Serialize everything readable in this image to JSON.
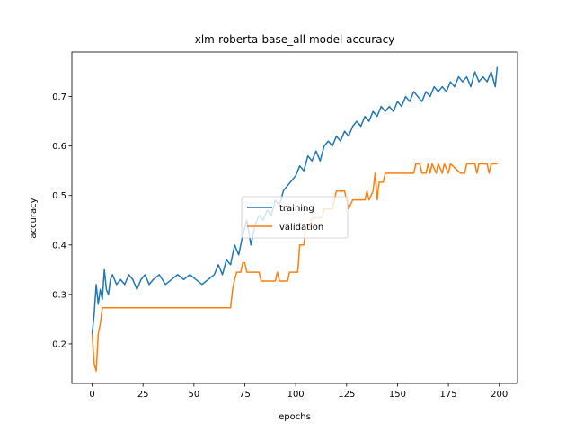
{
  "chart_data": {
    "type": "line",
    "title": "xlm-roberta-base_all model accuracy",
    "xlabel": "epochs",
    "ylabel": "accuracy",
    "xlim": [
      -9.95,
      208.95
    ],
    "ylim": [
      0.12,
      0.79
    ],
    "xticks": [
      0,
      25,
      50,
      75,
      100,
      125,
      150,
      175,
      200
    ],
    "yticks": [
      0.2,
      0.3,
      0.4,
      0.5,
      0.6,
      0.7
    ],
    "grid": false,
    "legend_position": "center",
    "series": [
      {
        "name": "training",
        "color": "#1f77b4",
        "keypoints": [
          [
            0,
            0.22
          ],
          [
            1,
            0.26
          ],
          [
            2,
            0.32
          ],
          [
            3,
            0.28
          ],
          [
            4,
            0.31
          ],
          [
            5,
            0.29
          ],
          [
            6,
            0.35
          ],
          [
            7,
            0.31
          ],
          [
            8,
            0.3
          ],
          [
            9,
            0.33
          ],
          [
            10,
            0.34
          ],
          [
            12,
            0.32
          ],
          [
            14,
            0.33
          ],
          [
            16,
            0.32
          ],
          [
            18,
            0.34
          ],
          [
            20,
            0.33
          ],
          [
            22,
            0.31
          ],
          [
            24,
            0.33
          ],
          [
            26,
            0.34
          ],
          [
            28,
            0.32
          ],
          [
            30,
            0.33
          ],
          [
            33,
            0.34
          ],
          [
            36,
            0.32
          ],
          [
            39,
            0.33
          ],
          [
            42,
            0.34
          ],
          [
            45,
            0.33
          ],
          [
            48,
            0.34
          ],
          [
            51,
            0.33
          ],
          [
            54,
            0.32
          ],
          [
            57,
            0.33
          ],
          [
            60,
            0.34
          ],
          [
            62,
            0.36
          ],
          [
            64,
            0.34
          ],
          [
            66,
            0.37
          ],
          [
            68,
            0.36
          ],
          [
            70,
            0.4
          ],
          [
            72,
            0.38
          ],
          [
            74,
            0.42
          ],
          [
            76,
            0.45
          ],
          [
            78,
            0.4
          ],
          [
            80,
            0.44
          ],
          [
            82,
            0.46
          ],
          [
            84,
            0.45
          ],
          [
            86,
            0.47
          ],
          [
            88,
            0.46
          ],
          [
            90,
            0.49
          ],
          [
            92,
            0.48
          ],
          [
            94,
            0.51
          ],
          [
            96,
            0.52
          ],
          [
            98,
            0.53
          ],
          [
            100,
            0.54
          ],
          [
            102,
            0.56
          ],
          [
            104,
            0.55
          ],
          [
            106,
            0.58
          ],
          [
            108,
            0.57
          ],
          [
            110,
            0.59
          ],
          [
            112,
            0.57
          ],
          [
            114,
            0.6
          ],
          [
            116,
            0.61
          ],
          [
            118,
            0.6
          ],
          [
            120,
            0.62
          ],
          [
            122,
            0.61
          ],
          [
            124,
            0.63
          ],
          [
            126,
            0.62
          ],
          [
            128,
            0.64
          ],
          [
            130,
            0.65
          ],
          [
            132,
            0.64
          ],
          [
            134,
            0.66
          ],
          [
            136,
            0.65
          ],
          [
            138,
            0.67
          ],
          [
            140,
            0.66
          ],
          [
            142,
            0.68
          ],
          [
            144,
            0.67
          ],
          [
            146,
            0.68
          ],
          [
            148,
            0.67
          ],
          [
            150,
            0.69
          ],
          [
            152,
            0.68
          ],
          [
            154,
            0.7
          ],
          [
            156,
            0.69
          ],
          [
            158,
            0.71
          ],
          [
            160,
            0.7
          ],
          [
            162,
            0.69
          ],
          [
            164,
            0.71
          ],
          [
            166,
            0.7
          ],
          [
            168,
            0.72
          ],
          [
            170,
            0.71
          ],
          [
            172,
            0.72
          ],
          [
            174,
            0.71
          ],
          [
            176,
            0.73
          ],
          [
            178,
            0.72
          ],
          [
            180,
            0.74
          ],
          [
            182,
            0.73
          ],
          [
            184,
            0.74
          ],
          [
            186,
            0.72
          ],
          [
            188,
            0.75
          ],
          [
            190,
            0.73
          ],
          [
            192,
            0.74
          ],
          [
            194,
            0.73
          ],
          [
            196,
            0.75
          ],
          [
            198,
            0.72
          ],
          [
            199,
            0.76
          ]
        ]
      },
      {
        "name": "validation",
        "color": "#ff7f0e",
        "keypoints": [
          [
            0,
            0.22
          ],
          [
            1,
            0.16
          ],
          [
            2,
            0.145
          ],
          [
            3,
            0.22
          ],
          [
            4,
            0.24
          ],
          [
            5,
            0.273
          ],
          [
            68,
            0.273
          ],
          [
            69,
            0.31
          ],
          [
            70,
            0.33
          ],
          [
            71,
            0.345
          ],
          [
            73,
            0.345
          ],
          [
            74,
            0.364
          ],
          [
            75,
            0.364
          ],
          [
            76,
            0.345
          ],
          [
            82,
            0.345
          ],
          [
            83,
            0.327
          ],
          [
            90,
            0.327
          ],
          [
            91,
            0.345
          ],
          [
            92,
            0.327
          ],
          [
            96,
            0.327
          ],
          [
            97,
            0.345
          ],
          [
            101,
            0.345
          ],
          [
            102,
            0.4
          ],
          [
            104,
            0.4
          ],
          [
            105,
            0.436
          ],
          [
            107,
            0.436
          ],
          [
            108,
            0.455
          ],
          [
            113,
            0.455
          ],
          [
            114,
            0.473
          ],
          [
            118,
            0.473
          ],
          [
            119,
            0.491
          ],
          [
            120,
            0.509
          ],
          [
            124,
            0.509
          ],
          [
            125,
            0.491
          ],
          [
            126,
            0.473
          ],
          [
            128,
            0.491
          ],
          [
            134,
            0.491
          ],
          [
            135,
            0.509
          ],
          [
            136,
            0.491
          ],
          [
            138,
            0.509
          ],
          [
            139,
            0.545
          ],
          [
            140,
            0.491
          ],
          [
            141,
            0.527
          ],
          [
            143,
            0.527
          ],
          [
            144,
            0.545
          ],
          [
            158,
            0.545
          ],
          [
            159,
            0.564
          ],
          [
            161,
            0.564
          ],
          [
            162,
            0.545
          ],
          [
            164,
            0.545
          ],
          [
            165,
            0.564
          ],
          [
            166,
            0.545
          ],
          [
            167,
            0.564
          ],
          [
            169,
            0.545
          ],
          [
            170,
            0.564
          ],
          [
            172,
            0.545
          ],
          [
            173,
            0.564
          ],
          [
            175,
            0.545
          ],
          [
            176,
            0.564
          ],
          [
            181,
            0.545
          ],
          [
            183,
            0.545
          ],
          [
            184,
            0.564
          ],
          [
            188,
            0.564
          ],
          [
            189,
            0.545
          ],
          [
            190,
            0.564
          ],
          [
            194,
            0.564
          ],
          [
            195,
            0.545
          ],
          [
            196,
            0.564
          ],
          [
            199,
            0.564
          ]
        ]
      }
    ]
  }
}
